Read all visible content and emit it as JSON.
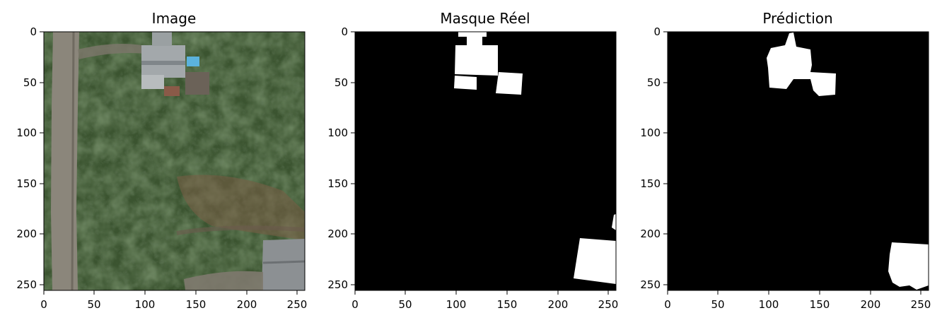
{
  "figure": {
    "panels": [
      {
        "id": "image",
        "title": "Image",
        "x_ticks": [
          "0",
          "50",
          "100",
          "150",
          "200",
          "250"
        ],
        "y_ticks": [
          "0",
          "50",
          "100",
          "150",
          "200",
          "250"
        ]
      },
      {
        "id": "mask",
        "title": "Masque Réel",
        "x_ticks": [
          "0",
          "50",
          "100",
          "150",
          "200",
          "250"
        ],
        "y_ticks": [
          "0",
          "50",
          "100",
          "150",
          "200",
          "250"
        ]
      },
      {
        "id": "prediction",
        "title": "Prédiction",
        "x_ticks": [
          "0",
          "50",
          "100",
          "150",
          "200",
          "250"
        ],
        "y_ticks": [
          "0",
          "50",
          "100",
          "150",
          "200",
          "250"
        ]
      }
    ],
    "colors": {
      "mask_background": "#000000",
      "mask_foreground": "#ffffff",
      "vegetation_dark": "#2e3f26",
      "vegetation_mid": "#3f5a30",
      "road": "#8a8478",
      "roof": "#9ea3a6",
      "pool": "#5aaed8",
      "soil": "#7a5a44"
    }
  }
}
